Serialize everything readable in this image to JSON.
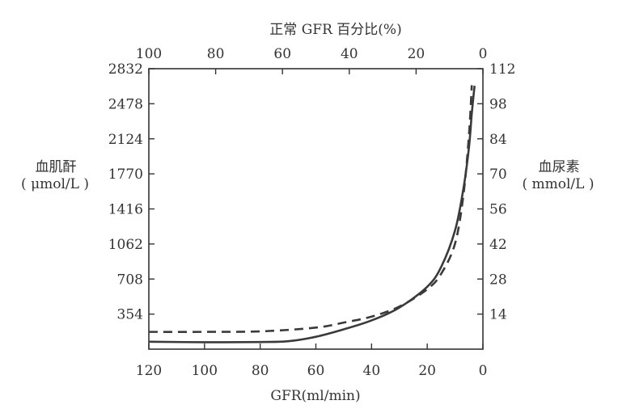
{
  "chart_data": {
    "type": "line",
    "title_top": "正常 GFR 百分比(%)",
    "xlabel": "GFR(ml/min)",
    "ylabel_left_line1": "血肌酐",
    "ylabel_left_line2": "( μmol/L )",
    "ylabel_right_line1": "血尿素",
    "ylabel_right_line2": "( mmol/L )",
    "x_bottom": {
      "range": [
        120,
        0
      ],
      "ticks": [
        120,
        100,
        80,
        60,
        40,
        20,
        0
      ]
    },
    "x_top": {
      "range": [
        100,
        0
      ],
      "ticks": [
        100,
        80,
        60,
        40,
        20,
        0
      ]
    },
    "y_left": {
      "range": [
        0,
        2832
      ],
      "ticks": [
        354,
        708,
        1062,
        1416,
        1770,
        2124,
        2478,
        2832
      ]
    },
    "y_right": {
      "range": [
        0,
        112
      ],
      "ticks": [
        14,
        28,
        42,
        56,
        70,
        84,
        98,
        112
      ]
    },
    "series": [
      {
        "axis": "left",
        "style": "solid",
        "x": [
          120,
          100,
          80,
          70,
          60,
          50,
          40,
          30,
          20,
          15,
          10,
          7,
          5,
          4,
          3
        ],
        "y": [
          75,
          70,
          72,
          80,
          125,
          200,
          290,
          420,
          630,
          830,
          1200,
          1620,
          2040,
          2380,
          2660
        ]
      },
      {
        "axis": "right",
        "style": "dashed",
        "x": [
          120,
          100,
          80,
          60,
          50,
          40,
          30,
          20,
          15,
          10,
          7,
          5,
          4
        ],
        "y": [
          6.9,
          6.9,
          7.1,
          8.6,
          10.6,
          13.0,
          17.0,
          23.9,
          30.1,
          42.2,
          61.6,
          85.6,
          105.4
        ]
      }
    ],
    "grid": false,
    "legend": "none"
  }
}
